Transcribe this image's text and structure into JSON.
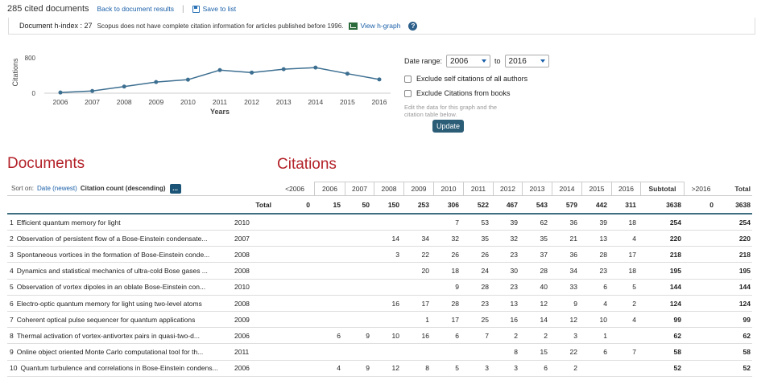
{
  "header": {
    "cited_count": "285 cited documents",
    "back_link": "Back to document results",
    "save_link": "Save to list"
  },
  "hindex": {
    "label": "Document h-index : 27",
    "note": "Scopus does not have complete citation information for articles published before 1996.",
    "view_hgraph": "View h-graph"
  },
  "chart_data": {
    "type": "line",
    "x": [
      "2006",
      "2007",
      "2008",
      "2009",
      "2010",
      "2011",
      "2012",
      "2013",
      "2014",
      "2015",
      "2016"
    ],
    "values": [
      15,
      50,
      150,
      253,
      306,
      522,
      467,
      543,
      579,
      442,
      311
    ],
    "ylabel": "Citations",
    "xlabel": "Years",
    "yticks": [
      "0",
      "800"
    ],
    "ylim": [
      0,
      800
    ],
    "line_color": "#3d6f91"
  },
  "controls": {
    "date_range_label": "Date range:",
    "from_year": "2006",
    "to_label": "to",
    "to_year": "2016",
    "exclude_self": "Exclude self citations of all authors",
    "exclude_books": "Exclude Citations from books",
    "edit_note": "Edit the data for this graph and the citation table below.",
    "update_button": "Update"
  },
  "headings": {
    "documents": "Documents",
    "citations": "Citations"
  },
  "sort": {
    "label": "Sort on:",
    "option_date": "Date (newest)",
    "option_citation": "Citation count (descending)",
    "more": "..."
  },
  "table": {
    "columns": [
      "<2006",
      "2006",
      "2007",
      "2008",
      "2009",
      "2010",
      "2011",
      "2012",
      "2013",
      "2014",
      "2015",
      "2016",
      "Subtotal",
      ">2016",
      "Total"
    ],
    "total_label": "Total",
    "totals": [
      "0",
      "15",
      "50",
      "150",
      "253",
      "306",
      "522",
      "467",
      "543",
      "579",
      "442",
      "311",
      "3638",
      "0",
      "3638"
    ],
    "rows": [
      {
        "num": "1",
        "title": "Efficient quantum memory for light",
        "year": "2010",
        "vals": [
          "",
          "",
          "",
          "",
          "",
          "7",
          "53",
          "39",
          "62",
          "36",
          "39",
          "18",
          "254",
          "",
          "254"
        ]
      },
      {
        "num": "2",
        "title": "Observation of persistent flow of a Bose-Einstein condensate...",
        "year": "2007",
        "vals": [
          "",
          "",
          "",
          "14",
          "34",
          "32",
          "35",
          "32",
          "35",
          "21",
          "13",
          "4",
          "220",
          "",
          "220"
        ]
      },
      {
        "num": "3",
        "title": "Spontaneous vortices in the formation of Bose-Einstein conde...",
        "year": "2008",
        "vals": [
          "",
          "",
          "",
          "3",
          "22",
          "26",
          "26",
          "23",
          "37",
          "36",
          "28",
          "17",
          "218",
          "",
          "218"
        ]
      },
      {
        "num": "4",
        "title": "Dynamics and statistical mechanics of ultra-cold Bose gases ...",
        "year": "2008",
        "vals": [
          "",
          "",
          "",
          "",
          "20",
          "18",
          "24",
          "30",
          "28",
          "34",
          "23",
          "18",
          "195",
          "",
          "195"
        ]
      },
      {
        "num": "5",
        "title": "Observation of vortex dipoles in an oblate Bose-Einstein con...",
        "year": "2010",
        "vals": [
          "",
          "",
          "",
          "",
          "",
          "9",
          "28",
          "23",
          "40",
          "33",
          "6",
          "5",
          "144",
          "",
          "144"
        ]
      },
      {
        "num": "6",
        "title": "Electro-optic quantum memory for light using two-level atoms",
        "year": "2008",
        "vals": [
          "",
          "",
          "",
          "16",
          "17",
          "28",
          "23",
          "13",
          "12",
          "9",
          "4",
          "2",
          "124",
          "",
          "124"
        ]
      },
      {
        "num": "7",
        "title": "Coherent optical pulse sequencer for quantum applications",
        "year": "2009",
        "vals": [
          "",
          "",
          "",
          "",
          "1",
          "17",
          "25",
          "16",
          "14",
          "12",
          "10",
          "4",
          "99",
          "",
          "99"
        ]
      },
      {
        "num": "8",
        "title": "Thermal activation of vortex-antivortex pairs in quasi-two-d...",
        "year": "2006",
        "vals": [
          "",
          "6",
          "9",
          "10",
          "16",
          "6",
          "7",
          "2",
          "2",
          "3",
          "1",
          "",
          "62",
          "",
          "62"
        ]
      },
      {
        "num": "9",
        "title": "Online object oriented Monte Carlo computational tool for th...",
        "year": "2011",
        "vals": [
          "",
          "",
          "",
          "",
          "",
          "",
          "",
          "8",
          "15",
          "22",
          "6",
          "7",
          "58",
          "",
          "58"
        ]
      },
      {
        "num": "10",
        "title": "Quantum turbulence and correlations in Bose-Einstein condens...",
        "year": "2006",
        "vals": [
          "",
          "4",
          "9",
          "12",
          "8",
          "5",
          "3",
          "3",
          "6",
          "2",
          "",
          "",
          "52",
          "",
          "52"
        ]
      }
    ]
  }
}
